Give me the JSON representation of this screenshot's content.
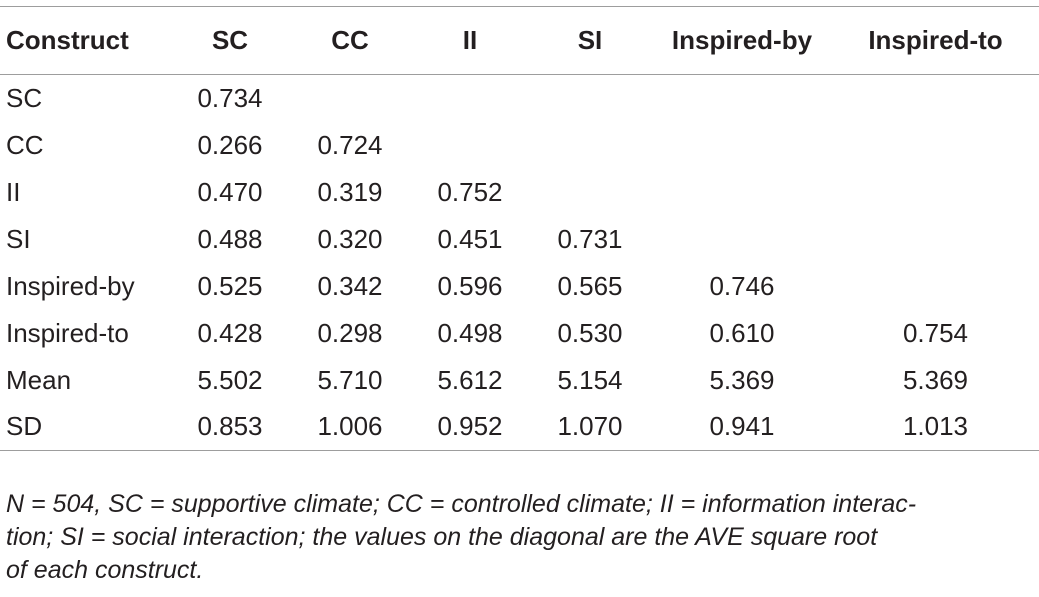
{
  "table": {
    "headers": [
      "Construct",
      "SC",
      "CC",
      "II",
      "SI",
      "Inspired-by",
      "Inspired-to"
    ],
    "rows": [
      [
        "SC",
        "0.734",
        "",
        "",
        "",
        "",
        ""
      ],
      [
        "CC",
        "0.266",
        "0.724",
        "",
        "",
        "",
        ""
      ],
      [
        "II",
        "0.470",
        "0.319",
        "0.752",
        "",
        "",
        ""
      ],
      [
        "SI",
        "0.488",
        "0.320",
        "0.451",
        "0.731",
        "",
        ""
      ],
      [
        "Inspired-by",
        "0.525",
        "0.342",
        "0.596",
        "0.565",
        "0.746",
        ""
      ],
      [
        "Inspired-to",
        "0.428",
        "0.298",
        "0.498",
        "0.530",
        "0.610",
        "0.754"
      ],
      [
        "Mean",
        "5.502",
        "5.710",
        "5.612",
        "5.154",
        "5.369",
        "5.369"
      ],
      [
        "SD",
        "0.853",
        "1.006",
        "0.952",
        "1.070",
        "0.941",
        "1.013"
      ]
    ]
  },
  "note": {
    "line1": "N = 504, SC = supportive climate; CC = controlled climate; II = information interac-",
    "line2": "tion; SI = social interaction; the values on the diagonal are the AVE square root",
    "line3": "of each construct."
  }
}
